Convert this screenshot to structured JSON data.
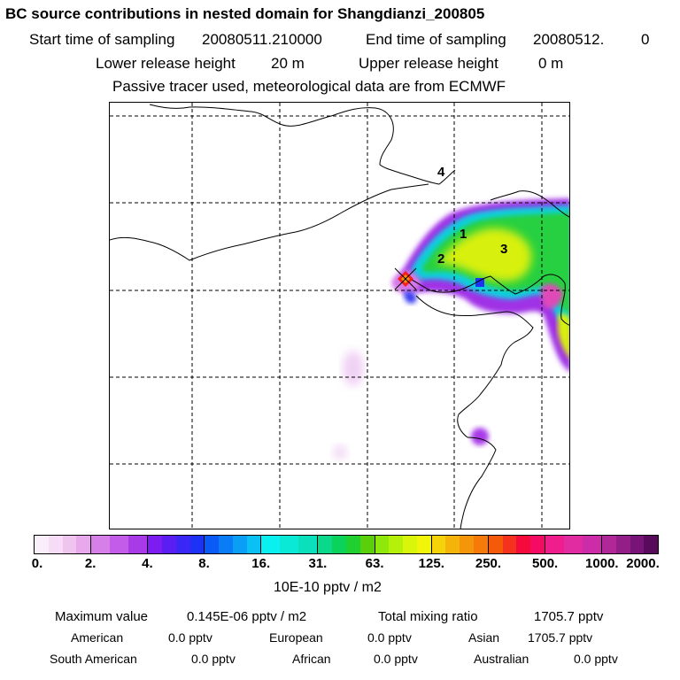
{
  "title": "BC  source contributions in nested domain for Shangdianzi_200805",
  "header": {
    "start_label": "Start time of sampling",
    "start_value": "20080511.210000",
    "end_label": "End time of sampling",
    "end_value": "20080512.",
    "end_suffix": "0",
    "lower_label": "Lower release height",
    "lower_value": "20 m",
    "upper_label": "Upper release height",
    "upper_value": "0 m",
    "note": "Passive tracer used, meteorological data are from ECMWF"
  },
  "map_labels": [
    "1",
    "2",
    "3",
    "4"
  ],
  "colorbar": {
    "ticks": [
      "0.",
      "2.",
      "4.",
      "8.",
      "16.",
      "31.",
      "63.",
      "125.",
      "250.",
      "500.",
      "1000.",
      "2000."
    ],
    "units": "10E-10 pptv / m2",
    "segments": [
      [
        "#fbeefb",
        "#f6dcf6",
        "#efc4ef",
        "#e8a8ec"
      ],
      [
        "#d67fe8",
        "#c35ce8",
        "#a93ae8"
      ],
      [
        "#7d1cf0",
        "#5a1ef2",
        "#3a26f5",
        "#1e32f5"
      ],
      [
        "#0a5af5",
        "#0a7cf5",
        "#0a9ef5",
        "#0ac0f5"
      ],
      [
        "#0af0f0",
        "#0ae8d6",
        "#0ae0bc"
      ],
      [
        "#0ad88a",
        "#0ad25a",
        "#20d030",
        "#5ad00a"
      ],
      [
        "#8ee80a",
        "#b4f00a",
        "#d8f50a",
        "#f0f50a"
      ],
      [
        "#f5d20a",
        "#f5b40a",
        "#f5960a",
        "#f57a0a"
      ],
      [
        "#f55a0a",
        "#f5321e",
        "#f50a3c",
        "#f50a64"
      ],
      [
        "#f01e8c",
        "#e02ca0",
        "#cc2ca8"
      ],
      [
        "#b02898",
        "#941e88",
        "#781478",
        "#5a0a5a"
      ]
    ]
  },
  "stats": {
    "max_label": "Maximum value",
    "max_value": "0.145E-06 pptv / m2",
    "total_label": "Total mixing ratio",
    "total_value": "1705.7 pptv"
  },
  "sources": [
    {
      "name": "American",
      "value": "0.0 pptv"
    },
    {
      "name": "European",
      "value": "0.0 pptv"
    },
    {
      "name": "Asian",
      "value": "1705.7 pptv"
    },
    {
      "name": "South American",
      "value": "0.0 pptv"
    },
    {
      "name": "African",
      "value": "0.0 pptv"
    },
    {
      "name": "Australian",
      "value": "0.0 pptv"
    }
  ]
}
